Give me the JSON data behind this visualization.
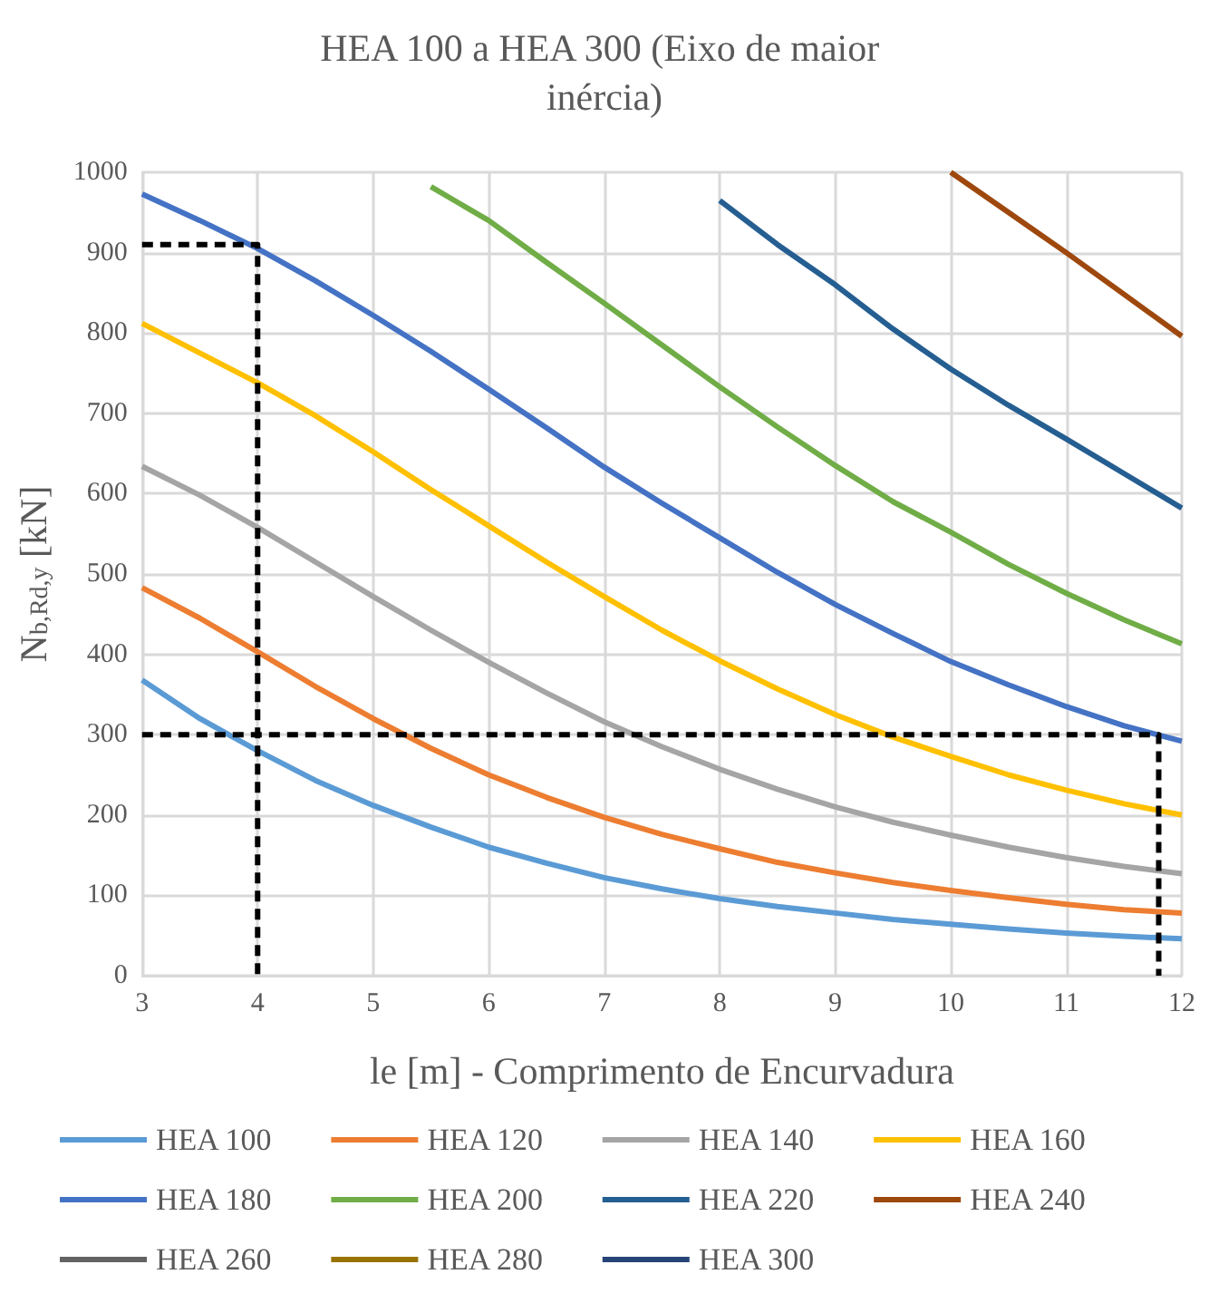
{
  "chart_data": {
    "type": "line",
    "title": "HEA 100 a HEA 300 (Eixo de maior inércia)",
    "xlabel": "le [m] - Comprimento de Encurvadura",
    "ylabel": "N$_{b,Rd,y}$ [kN]",
    "x": [
      3,
      3.5,
      4,
      4.5,
      5,
      5.5,
      6,
      6.5,
      7,
      7.5,
      8,
      8.5,
      9,
      9.5,
      10,
      10.5,
      11,
      11.5,
      12
    ],
    "series": [
      {
        "name": "HEA 100",
        "color": "#5b9bd5",
        "values": [
          368,
          320,
          280,
          243,
          212,
          185,
          160,
          140,
          122,
          108,
          96,
          86,
          78,
          70,
          64,
          58,
          53,
          49,
          46
        ]
      },
      {
        "name": "HEA 120",
        "color": "#ed7d31",
        "values": [
          483,
          445,
          403,
          360,
          320,
          283,
          250,
          222,
          197,
          176,
          158,
          141,
          128,
          116,
          106,
          97,
          89,
          82,
          78
        ]
      },
      {
        "name": "HEA 140",
        "color": "#a5a5a5",
        "values": [
          634,
          598,
          558,
          515,
          472,
          430,
          390,
          352,
          316,
          285,
          257,
          232,
          210,
          191,
          175,
          160,
          147,
          136,
          127
        ]
      },
      {
        "name": "HEA 160",
        "color": "#ffc000",
        "values": [
          812,
          775,
          738,
          697,
          652,
          605,
          560,
          515,
          472,
          430,
          392,
          357,
          325,
          297,
          273,
          250,
          231,
          214,
          200
        ]
      },
      {
        "name": "HEA 180",
        "color": "#4472c4",
        "values": [
          973,
          940,
          905,
          865,
          822,
          777,
          730,
          682,
          633,
          588,
          545,
          502,
          462,
          426,
          391,
          362,
          335,
          311,
          292
        ]
      },
      {
        "name": "HEA 200",
        "color": "#70ad47",
        "values": [
          null,
          null,
          null,
          null,
          null,
          982,
          940,
          888,
          837,
          785,
          733,
          683,
          635,
          590,
          552,
          512,
          476,
          443,
          413
        ]
      },
      {
        "name": "HEA 220",
        "color": "#255e91",
        "values": [
          null,
          null,
          null,
          null,
          null,
          null,
          null,
          null,
          null,
          null,
          965,
          910,
          860,
          805,
          755,
          710,
          668,
          625,
          582
        ]
      },
      {
        "name": "HEA 240",
        "color": "#9e480e",
        "values": [
          null,
          null,
          null,
          null,
          null,
          null,
          null,
          null,
          null,
          null,
          null,
          null,
          null,
          null,
          1000,
          950,
          900,
          848,
          796
        ]
      },
      {
        "name": "HEA 260",
        "color": "#636363",
        "values": [
          null,
          null,
          null,
          null,
          null,
          null,
          null,
          null,
          null,
          null,
          null,
          null,
          null,
          null,
          null,
          null,
          null,
          null,
          null
        ]
      },
      {
        "name": "HEA 280",
        "color": "#997300",
        "values": [
          null,
          null,
          null,
          null,
          null,
          null,
          null,
          null,
          null,
          null,
          null,
          null,
          null,
          null,
          null,
          null,
          null,
          null,
          null
        ]
      },
      {
        "name": "HEA 300",
        "color": "#264478",
        "values": [
          null,
          null,
          null,
          null,
          null,
          null,
          null,
          null,
          null,
          null,
          null,
          null,
          null,
          null,
          null,
          null,
          null,
          null,
          null
        ]
      },
      {
        "color": "#000000",
        "line_style": "dashed",
        "x": [
          3,
          4,
          4
        ],
        "values": [
          910,
          910,
          0
        ]
      },
      {
        "color": "#000000",
        "line_style": "dashed",
        "x": [
          3,
          11.8,
          11.8
        ],
        "values": [
          300,
          300,
          0
        ]
      }
    ],
    "xlim": [
      3,
      12
    ],
    "xticks": [
      3,
      4,
      5,
      6,
      7,
      8,
      9,
      10,
      11,
      12
    ],
    "ylim": [
      0,
      1000
    ],
    "yticks": [
      0,
      100,
      200,
      300,
      400,
      500,
      600,
      700,
      800,
      900,
      1000
    ],
    "grid": true,
    "legend": "bottom",
    "marker": "none",
    "line_style": "solid"
  }
}
